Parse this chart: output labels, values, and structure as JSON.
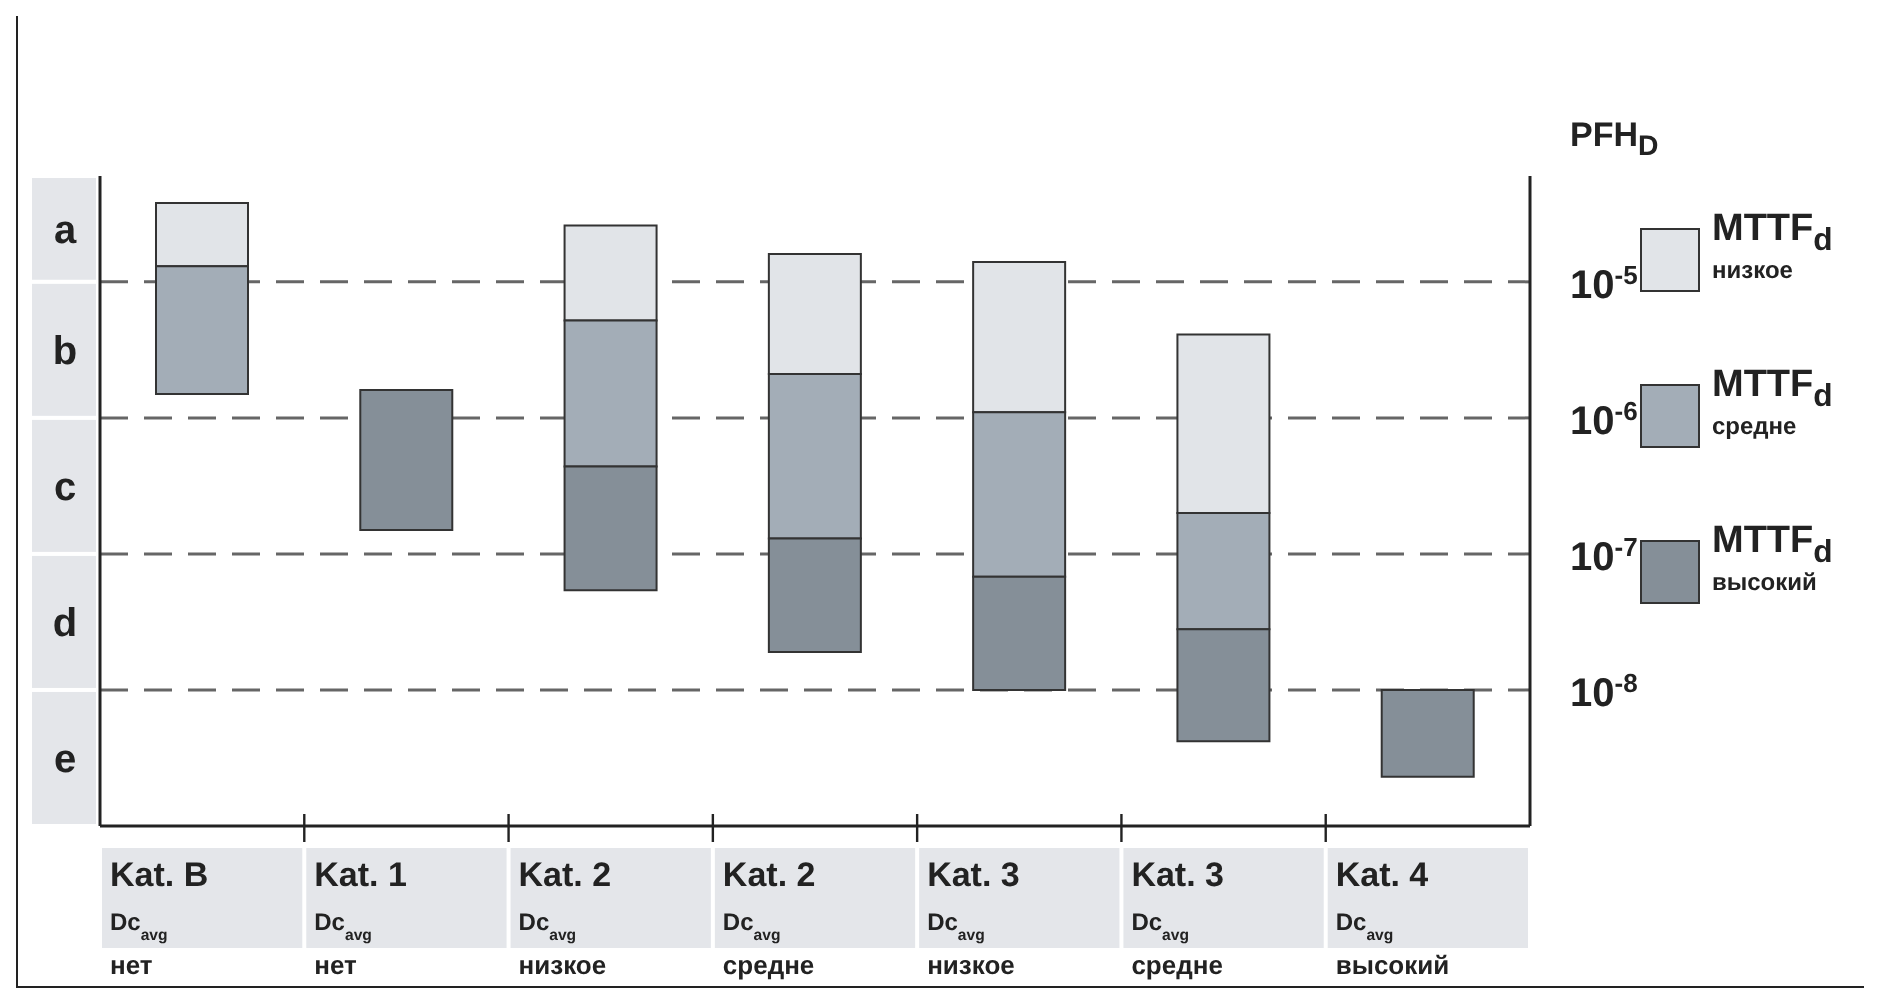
{
  "chart_data": {
    "type": "bar",
    "ylabel": "PFH$_{D}$",
    "log": "y",
    "grid": "y",
    "legend": "right",
    "categories": [
      "Kat. B\nDc$_{avg}$\nнет",
      "Kat. 1\nDc$_{avg}$\nнет",
      "Kat. 2\nDc$_{avg}$\nнизкое",
      "Kat. 2\nDc$_{avg}$\nсредне",
      "Kat. 3\nDc$_{avg}$\nнизкое",
      "Kat. 3\nDc$_{avg}$\nсредне",
      "Kat. 4\nDc$_{avg}$\nвысокий"
    ],
    "ylim": [
      1e-09,
      6e-05
    ],
    "yticks": [
      {
        "value": 1e-05,
        "label": "10$^{-5}$"
      },
      {
        "value": 1e-06,
        "label": "10$^{-6}$"
      },
      {
        "value": 1e-07,
        "label": "10$^{-7}$"
      },
      {
        "value": 1e-08,
        "label": "10$^{-8}$"
      }
    ],
    "series": [
      {
        "name": "MTTF$_{d}$\nнизкое",
        "color": "#e1e4e8",
        "base": [
          1.3e-05,
          null,
          5.2e-06,
          2.1e-06,
          1.1e-06,
          2e-07,
          null
        ],
        "values": [
          2.5e-05,
          null,
          2.08e-05,
          1.39e-05,
          1.29e-05,
          3.9e-06,
          null
        ]
      },
      {
        "name": "MTTF$_{d}$\nсредне",
        "color": "#a3adb7",
        "base": [
          1.5e-06,
          null,
          4.4e-07,
          1.3e-07,
          6.8e-08,
          2.8e-08,
          null
        ],
        "values": [
          1.15e-05,
          null,
          4.76e-06,
          1.97e-06,
          1.032e-06,
          1.72e-07,
          null
        ]
      },
      {
        "name": "MTTF$_{d}$\nвысокий",
        "color": "#858f98",
        "base": [
          null,
          1.5e-07,
          5.4e-08,
          1.9e-08,
          1e-08,
          4.2e-09,
          2.3e-09
        ],
        "values": [
          null,
          1.45e-06,
          3.86e-07,
          1.11e-07,
          5.8e-08,
          2.38e-08,
          7.7e-09
        ]
      }
    ],
    "annotations": [
      "a",
      "b",
      "c",
      "d",
      "e"
    ]
  }
}
